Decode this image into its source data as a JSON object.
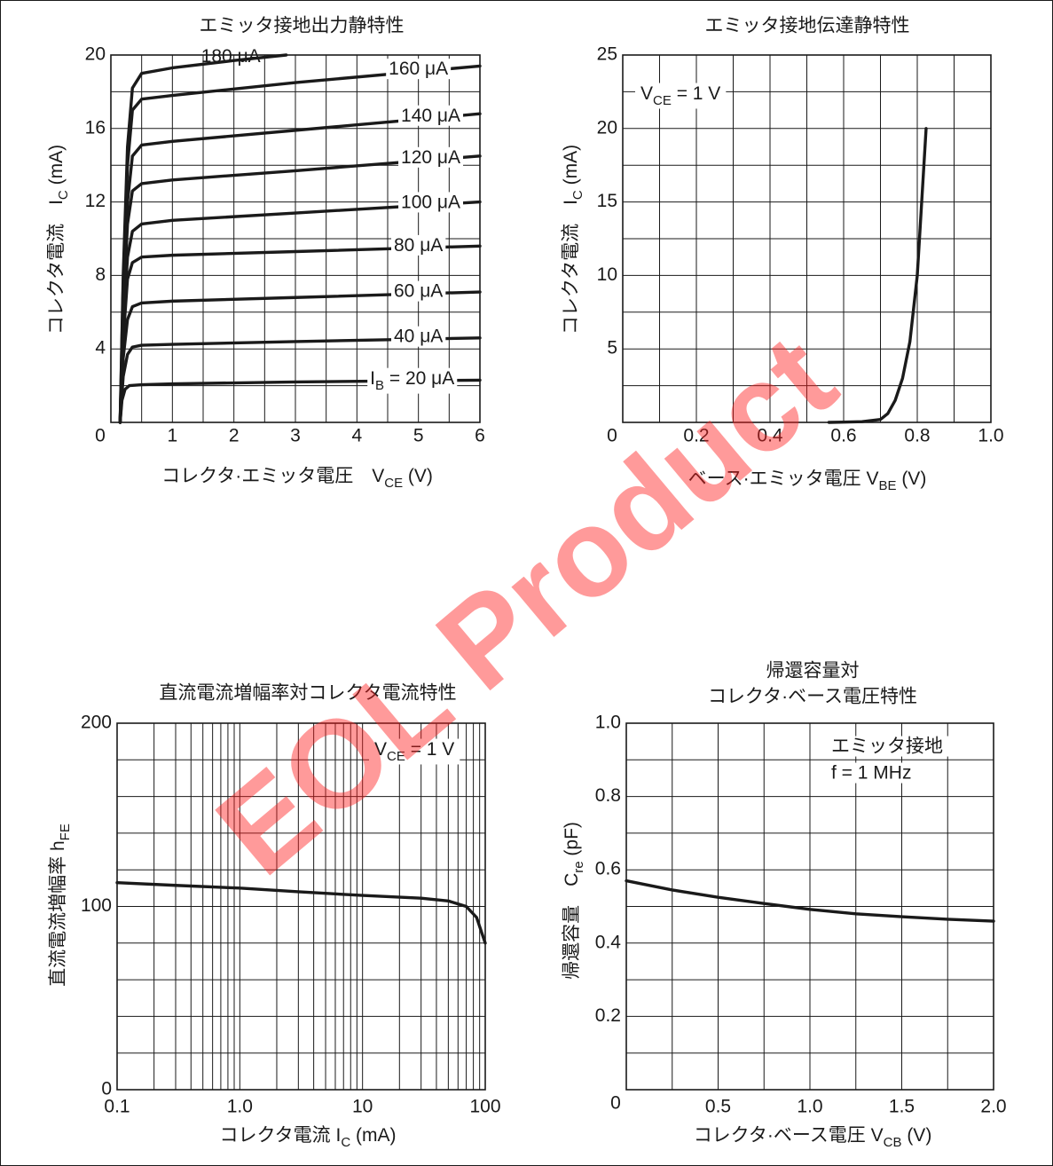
{
  "watermark": "EOL Product",
  "chart_data": [
    {
      "type": "line",
      "title": "エミッタ接地出力静特性",
      "xlabel": {
        "main": "コレクタ·エミッタ電圧　V",
        "sub": "CE",
        "tail": " (V)"
      },
      "ylabel": {
        "main": "コレクタ電流　I",
        "sub": "C",
        "tail": " (mA)"
      },
      "xlim": [
        0,
        6
      ],
      "ylim": [
        0,
        20
      ],
      "xticks": [
        0,
        1,
        2,
        3,
        4,
        5,
        6
      ],
      "yticks": [
        4,
        8,
        12,
        16,
        20
      ],
      "x_grid_step": 0.5,
      "y_grid_step": 2,
      "grid": true,
      "series": [
        {
          "name": "180 μA",
          "color": "#1a1a1a",
          "x": [
            0.15,
            0.2,
            0.27,
            0.35,
            0.5,
            1,
            2,
            2.85
          ],
          "values": [
            0,
            8,
            15,
            18.2,
            19.0,
            19.3,
            19.7,
            20
          ]
        },
        {
          "name": "160 μA",
          "color": "#1a1a1a",
          "x": [
            0.15,
            0.2,
            0.27,
            0.35,
            0.5,
            1,
            3,
            6
          ],
          "values": [
            0,
            7.5,
            14,
            17,
            17.6,
            17.8,
            18.5,
            19.4
          ]
        },
        {
          "name": "140 μA",
          "color": "#1a1a1a",
          "x": [
            0.15,
            0.2,
            0.27,
            0.35,
            0.5,
            1,
            3,
            6
          ],
          "values": [
            0,
            6.5,
            12,
            14.5,
            15.1,
            15.3,
            15.9,
            16.8
          ]
        },
        {
          "name": "120 μA",
          "color": "#1a1a1a",
          "x": [
            0.15,
            0.2,
            0.27,
            0.35,
            0.5,
            1,
            3,
            6
          ],
          "values": [
            0,
            6,
            10.8,
            12.6,
            13.0,
            13.2,
            13.7,
            14.5
          ]
        },
        {
          "name": "100 μA",
          "color": "#1a1a1a",
          "x": [
            0.15,
            0.2,
            0.27,
            0.35,
            0.5,
            1,
            3,
            6
          ],
          "values": [
            0,
            5,
            9,
            10.4,
            10.8,
            11.0,
            11.4,
            12.0
          ]
        },
        {
          "name": "80 μA",
          "color": "#1a1a1a",
          "x": [
            0.15,
            0.2,
            0.27,
            0.35,
            0.5,
            1,
            3,
            6
          ],
          "values": [
            0,
            4.5,
            7.8,
            8.7,
            9.0,
            9.1,
            9.3,
            9.6
          ]
        },
        {
          "name": "60 μA",
          "color": "#1a1a1a",
          "x": [
            0.15,
            0.2,
            0.27,
            0.35,
            0.5,
            1,
            3,
            6
          ],
          "values": [
            0,
            3.5,
            5.6,
            6.3,
            6.5,
            6.6,
            6.8,
            7.1
          ]
        },
        {
          "name": "40 μA",
          "color": "#1a1a1a",
          "x": [
            0.15,
            0.2,
            0.27,
            0.35,
            0.5,
            1,
            3,
            6
          ],
          "values": [
            0,
            2.5,
            3.7,
            4.1,
            4.2,
            4.25,
            4.4,
            4.6
          ]
        },
        {
          "name": {
            "main": "I",
            "sub": "B",
            "tail": " = 20 μA"
          },
          "color": "#1a1a1a",
          "x": [
            0.15,
            0.18,
            0.23,
            0.3,
            0.5,
            1,
            3,
            6
          ],
          "values": [
            0,
            1.2,
            1.8,
            2.0,
            2.05,
            2.1,
            2.2,
            2.3
          ]
        }
      ]
    },
    {
      "type": "line",
      "title": "エミッタ接地伝達静特性",
      "xlabel": {
        "main": "ベース·エミッタ電圧 V",
        "sub": "BE",
        "tail": " (V)"
      },
      "ylabel": {
        "main": "コレクタ電流　I",
        "sub": "C",
        "tail": " (mA)"
      },
      "annotations": [
        {
          "main": "V",
          "sub": "CE",
          "tail": " = 1 V"
        }
      ],
      "xlim": [
        0,
        1.0
      ],
      "ylim": [
        0,
        25
      ],
      "xticks": [
        0,
        0.2,
        0.4,
        0.6,
        0.8,
        {
          "value": 1.0,
          "label": "1.0"
        }
      ],
      "yticks": [
        5,
        10,
        15,
        20,
        25
      ],
      "x_grid_step": 0.1,
      "y_grid_step": 2.5,
      "grid": true,
      "series": [
        {
          "color": "#1a1a1a",
          "x": [
            0.56,
            0.6,
            0.65,
            0.7,
            0.72,
            0.74,
            0.76,
            0.78,
            0.8,
            0.824
          ],
          "values": [
            0,
            0.02,
            0.05,
            0.2,
            0.6,
            1.5,
            3,
            5.5,
            10,
            20
          ]
        }
      ]
    },
    {
      "type": "line",
      "title": "直流電流増幅率対コレクタ電流特性",
      "xlabel": {
        "main": "コレクタ電流 I",
        "sub": "C",
        "tail": " (mA)"
      },
      "ylabel": {
        "main": "直流電流増幅率 h",
        "sub": "FE"
      },
      "annotations": [
        {
          "main": "V",
          "sub": "CE",
          "tail": " = 1 V"
        }
      ],
      "xscale": "log",
      "xlim": [
        0.1,
        100
      ],
      "ylim": [
        0,
        200
      ],
      "xticks": [
        0.1,
        {
          "value": 1.0,
          "label": "1.0"
        },
        10,
        100
      ],
      "yticks": [
        0,
        100,
        200
      ],
      "y_grid_step": 20,
      "grid": true,
      "series": [
        {
          "color": "#1a1a1a",
          "x": [
            0.1,
            0.3,
            1,
            3,
            10,
            30,
            50,
            70,
            85,
            100
          ],
          "values": [
            113,
            111.5,
            110,
            108,
            106,
            104.5,
            103,
            100,
            94,
            80
          ]
        }
      ]
    },
    {
      "type": "line",
      "title": [
        "帰還容量対",
        "コレクタ·ベース電圧特性"
      ],
      "xlabel": {
        "main": "コレクタ·ベース電圧 V",
        "sub": "CB",
        "tail": " (V)"
      },
      "ylabel": {
        "main": "帰還容量　C",
        "sub": "re",
        "tail": " (pF)"
      },
      "annotations": [
        "エミッタ接地",
        "f = 1 MHz"
      ],
      "xlim": [
        0,
        2.0
      ],
      "ylim": [
        0,
        1.0
      ],
      "xticks": [
        0,
        0.5,
        {
          "value": 1.0,
          "label": "1.0"
        },
        1.5,
        {
          "value": 2.0,
          "label": "2.0"
        }
      ],
      "yticks": [
        0.2,
        0.4,
        0.6,
        0.8,
        {
          "value": 1.0,
          "label": "1.0"
        }
      ],
      "x_grid_step": 0.25,
      "y_grid_step": 0.1,
      "grid": true,
      "series": [
        {
          "color": "#1a1a1a",
          "x": [
            0,
            0.25,
            0.5,
            0.75,
            1,
            1.25,
            1.5,
            1.75,
            2
          ],
          "values": [
            0.57,
            0.545,
            0.525,
            0.508,
            0.492,
            0.48,
            0.472,
            0.465,
            0.46
          ]
        }
      ]
    }
  ]
}
